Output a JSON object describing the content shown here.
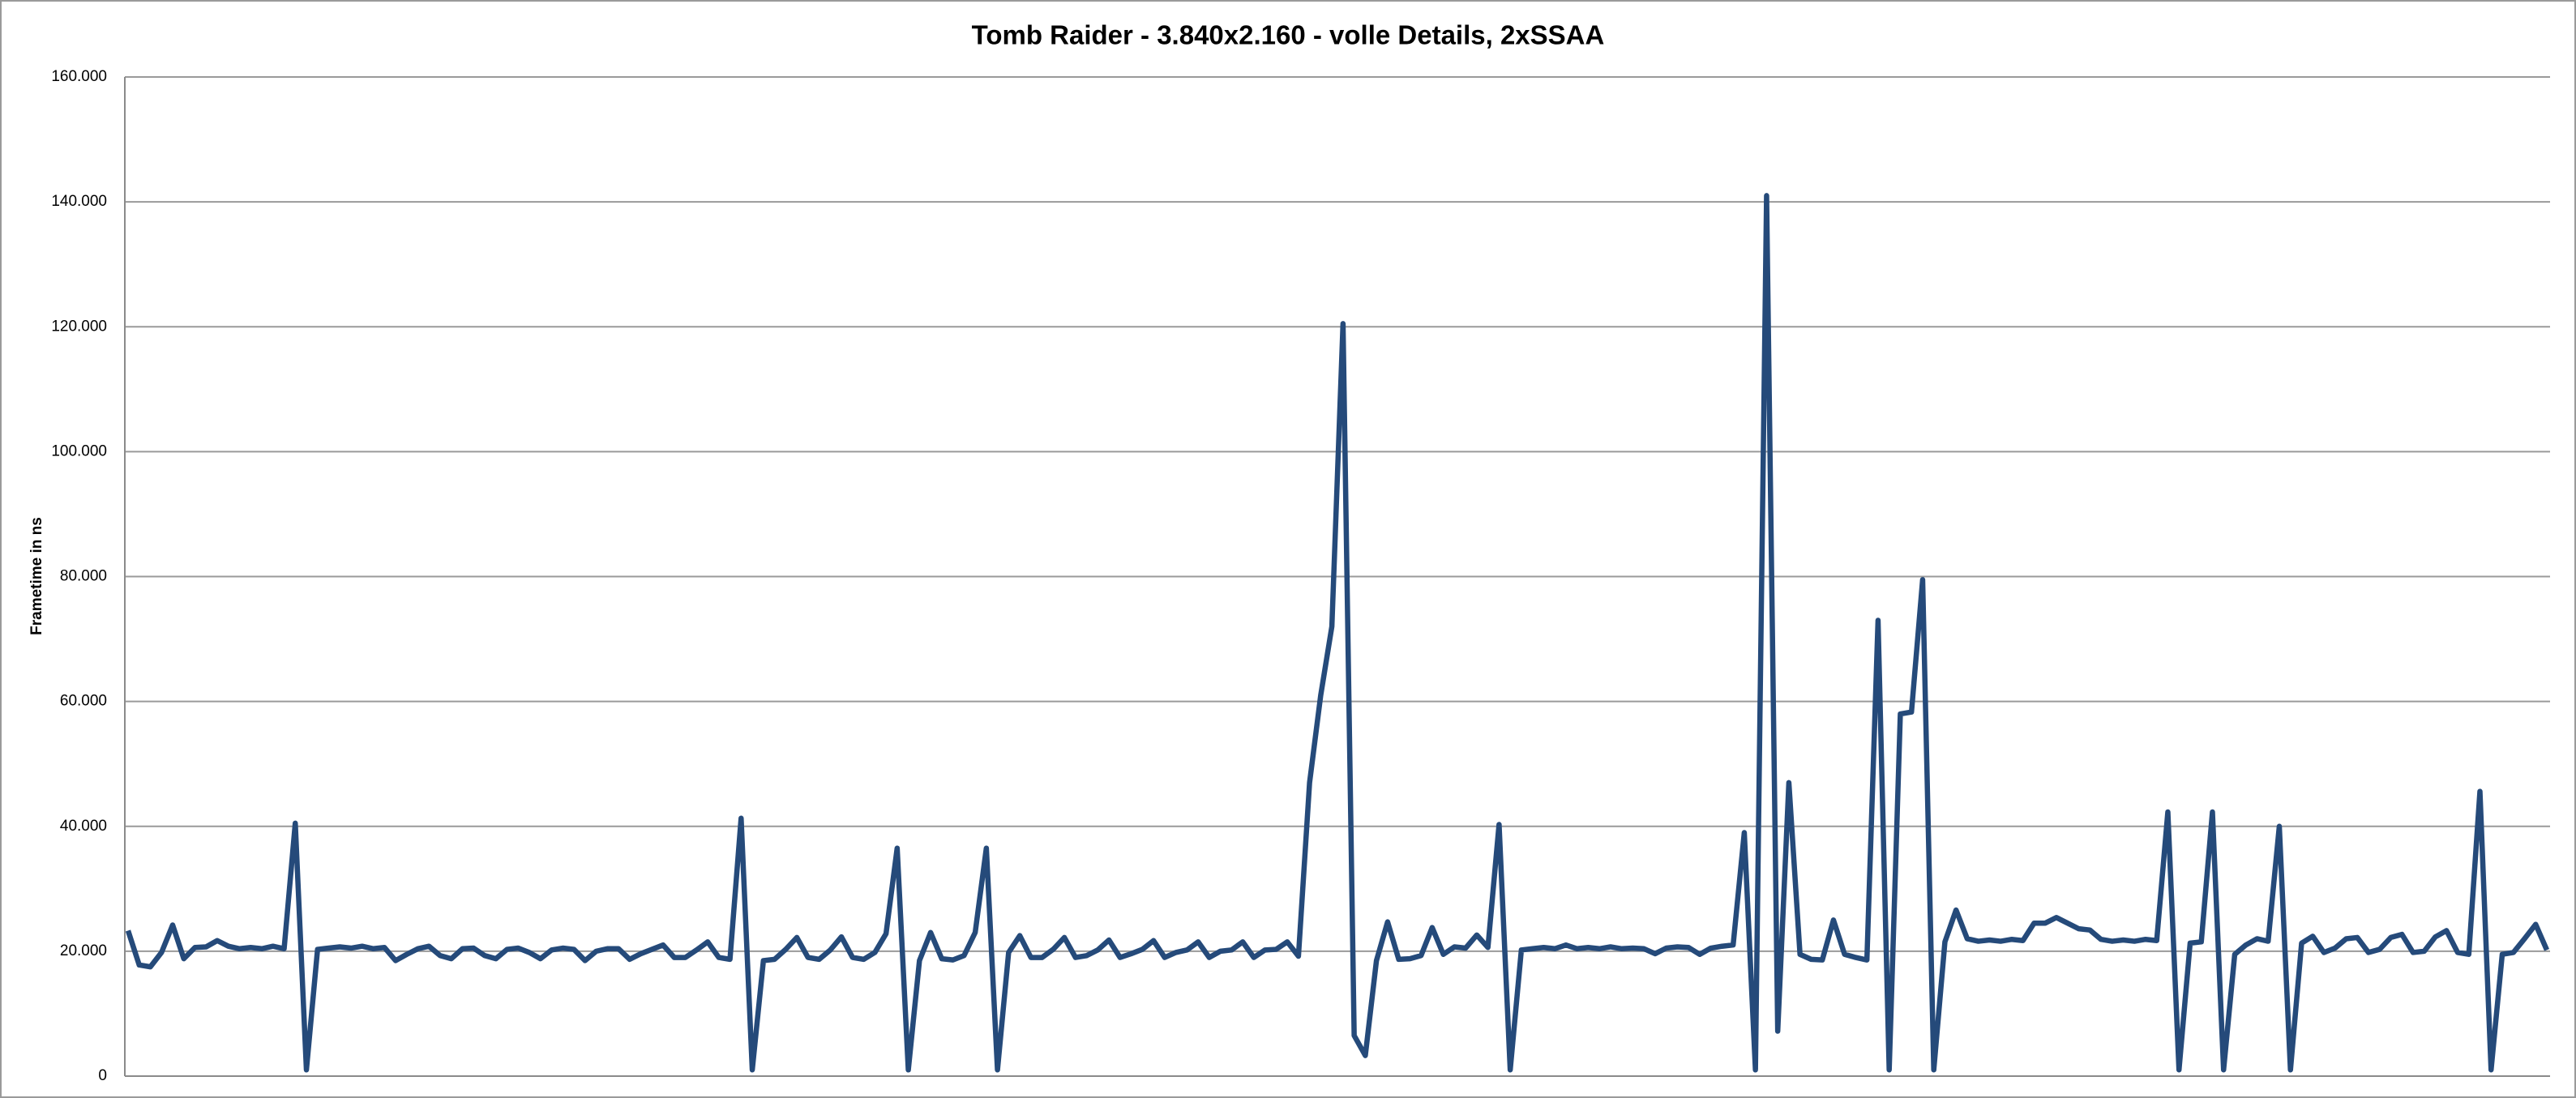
{
  "chart_data": {
    "type": "line",
    "title": "Tomb Raider - 3.840x2.160 - volle Details, 2xSSAA",
    "y_label": "Frametime in ns",
    "ylim": [
      0,
      160000
    ],
    "yticks": [
      0,
      {
        "value": 20000,
        "label": "20.000"
      },
      {
        "value": 40000,
        "label": "40.000"
      },
      {
        "value": 60000,
        "label": "60.000"
      },
      {
        "value": 80000,
        "label": "80.000"
      },
      {
        "value": 100000,
        "label": "100.000"
      },
      {
        "value": 120000,
        "label": "120.000"
      },
      {
        "value": 140000,
        "label": "140.000"
      },
      {
        "value": 160000,
        "label": "160.000"
      }
    ],
    "grid": true,
    "color": "#254a7a",
    "values": [
      23300,
      17800,
      17500,
      19800,
      24200,
      18800,
      20600,
      20700,
      21700,
      20800,
      20400,
      20600,
      20400,
      20800,
      20400,
      40500,
      1000,
      20300,
      20500,
      20700,
      20500,
      20800,
      20400,
      20600,
      18500,
      19500,
      20400,
      20800,
      19300,
      18800,
      20400,
      20500,
      19300,
      18800,
      20300,
      20500,
      19800,
      18800,
      20200,
      20500,
      20300,
      18500,
      20000,
      20400,
      20400,
      18700,
      19600,
      20300,
      21000,
      19000,
      19000,
      20200,
      21500,
      19000,
      18700,
      41300,
      1000,
      18500,
      18700,
      20300,
      22200,
      19000,
      18700,
      20200,
      22300,
      19000,
      18700,
      19800,
      22800,
      36500,
      1000,
      18500,
      23000,
      18800,
      18600,
      19300,
      23000,
      36500,
      1000,
      19800,
      22500,
      19000,
      19000,
      20300,
      22200,
      19000,
      19300,
      20200,
      21800,
      19000,
      19600,
      20300,
      21700,
      19000,
      19800,
      20200,
      21500,
      19000,
      20000,
      20200,
      21500,
      19000,
      20200,
      20300,
      21500,
      19200,
      47000,
      61000,
      72000,
      120500,
      6500,
      3300,
      18500,
      24700,
      18700,
      18800,
      19300,
      23800,
      19500,
      20700,
      20500,
      22600,
      20600,
      40300,
      1000,
      20200,
      20400,
      20600,
      20400,
      21000,
      20400,
      20600,
      20400,
      20700,
      20400,
      20500,
      20400,
      19600,
      20500,
      20700,
      20600,
      19500,
      20500,
      20800,
      21000,
      39000,
      1000,
      141000,
      7200,
      47000,
      19500,
      18700,
      18600,
      25000,
      19500,
      19000,
      18600,
      73000,
      1000,
      58000,
      58300,
      79500,
      1000,
      21500,
      26600,
      22000,
      21600,
      21800,
      21600,
      21900,
      21700,
      24500,
      24500,
      25400,
      24500,
      23600,
      23400,
      21900,
      21600,
      21800,
      21600,
      21900,
      21700,
      42300,
      1000,
      21300,
      21500,
      42300,
      1000,
      19500,
      21000,
      22000,
      21600,
      40000,
      1000,
      21300,
      22400,
      19800,
      20500,
      22000,
      22200,
      19800,
      20300,
      22200,
      22700,
      19800,
      20000,
      22300,
      23300,
      19800,
      19500,
      45600,
      1000,
      19500,
      19800,
      22000,
      24300,
      20200
    ]
  }
}
